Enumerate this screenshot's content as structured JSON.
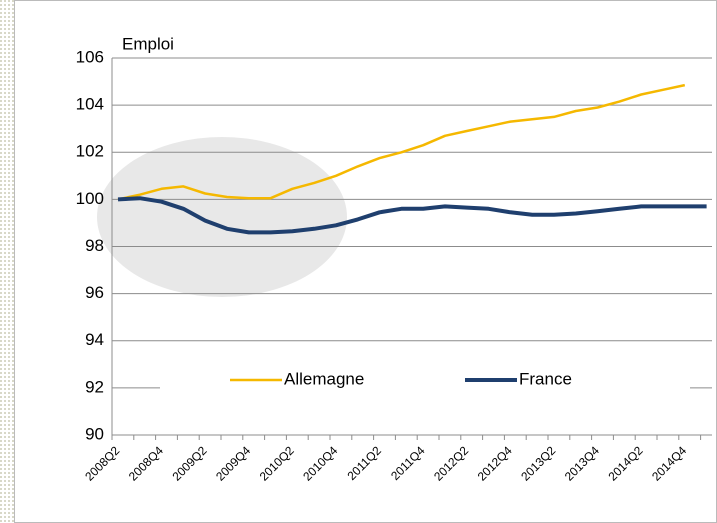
{
  "chart_data": {
    "type": "line",
    "title": "Emploi",
    "categories": [
      "2008Q2",
      null,
      "2008Q4",
      null,
      "2009Q2",
      null,
      "2009Q4",
      null,
      "2010Q2",
      null,
      "2010Q4",
      null,
      "2011Q2",
      null,
      "2011Q4",
      null,
      "2012Q2",
      null,
      "2012Q4",
      null,
      "2013Q2",
      null,
      "2013Q4",
      null,
      "2014Q2",
      null,
      "2014Q4",
      null
    ],
    "series": [
      {
        "name": "Allemagne",
        "color": "#f5b800",
        "values": [
          100.0,
          100.2,
          100.45,
          100.55,
          100.25,
          100.1,
          100.05,
          100.05,
          100.45,
          100.7,
          101.0,
          101.4,
          101.75,
          102.0,
          102.3,
          102.7,
          102.9,
          103.1,
          103.3,
          103.4,
          103.5,
          103.75,
          103.9,
          104.15,
          104.45,
          104.65,
          104.85,
          null
        ]
      },
      {
        "name": "France",
        "color": "#1f3f6e",
        "values": [
          100.0,
          100.05,
          99.9,
          99.6,
          99.1,
          98.75,
          98.6,
          98.6,
          98.65,
          98.75,
          98.9,
          99.15,
          99.45,
          99.6,
          99.6,
          99.7,
          99.65,
          99.6,
          99.45,
          99.35,
          99.35,
          99.4,
          99.5,
          99.6,
          99.7,
          99.7,
          99.7,
          99.7
        ]
      }
    ],
    "ylim": [
      90,
      106
    ],
    "yticks": [
      90,
      92,
      94,
      96,
      98,
      100,
      102,
      104,
      106
    ],
    "grid": true,
    "legend": "lower center"
  }
}
